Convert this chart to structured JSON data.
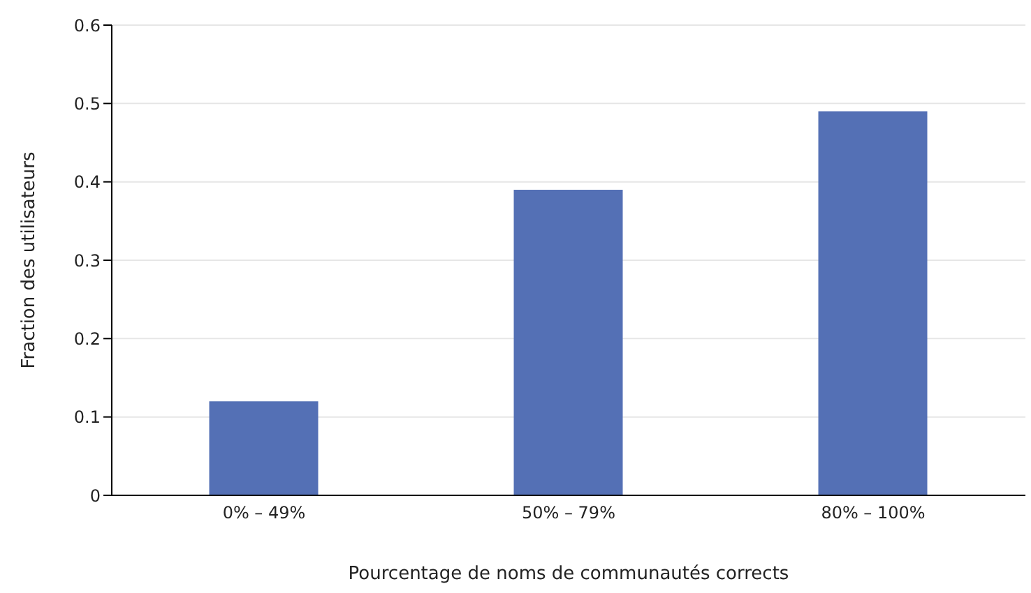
{
  "chart_data": {
    "type": "bar",
    "xlabel": "Pourcentage de noms de communautés corrects",
    "ylabel": "Fraction des utilisateurs",
    "categories": [
      "0% – 49%",
      "50% – 79%",
      "80% – 100%"
    ],
    "values": [
      0.12,
      0.39,
      0.49
    ],
    "color": "#5470b5",
    "ylim": [
      0,
      0.6
    ],
    "yticks": [
      0,
      0.1,
      0.2,
      0.3,
      0.4,
      0.5,
      0.6
    ],
    "grid": "y"
  }
}
